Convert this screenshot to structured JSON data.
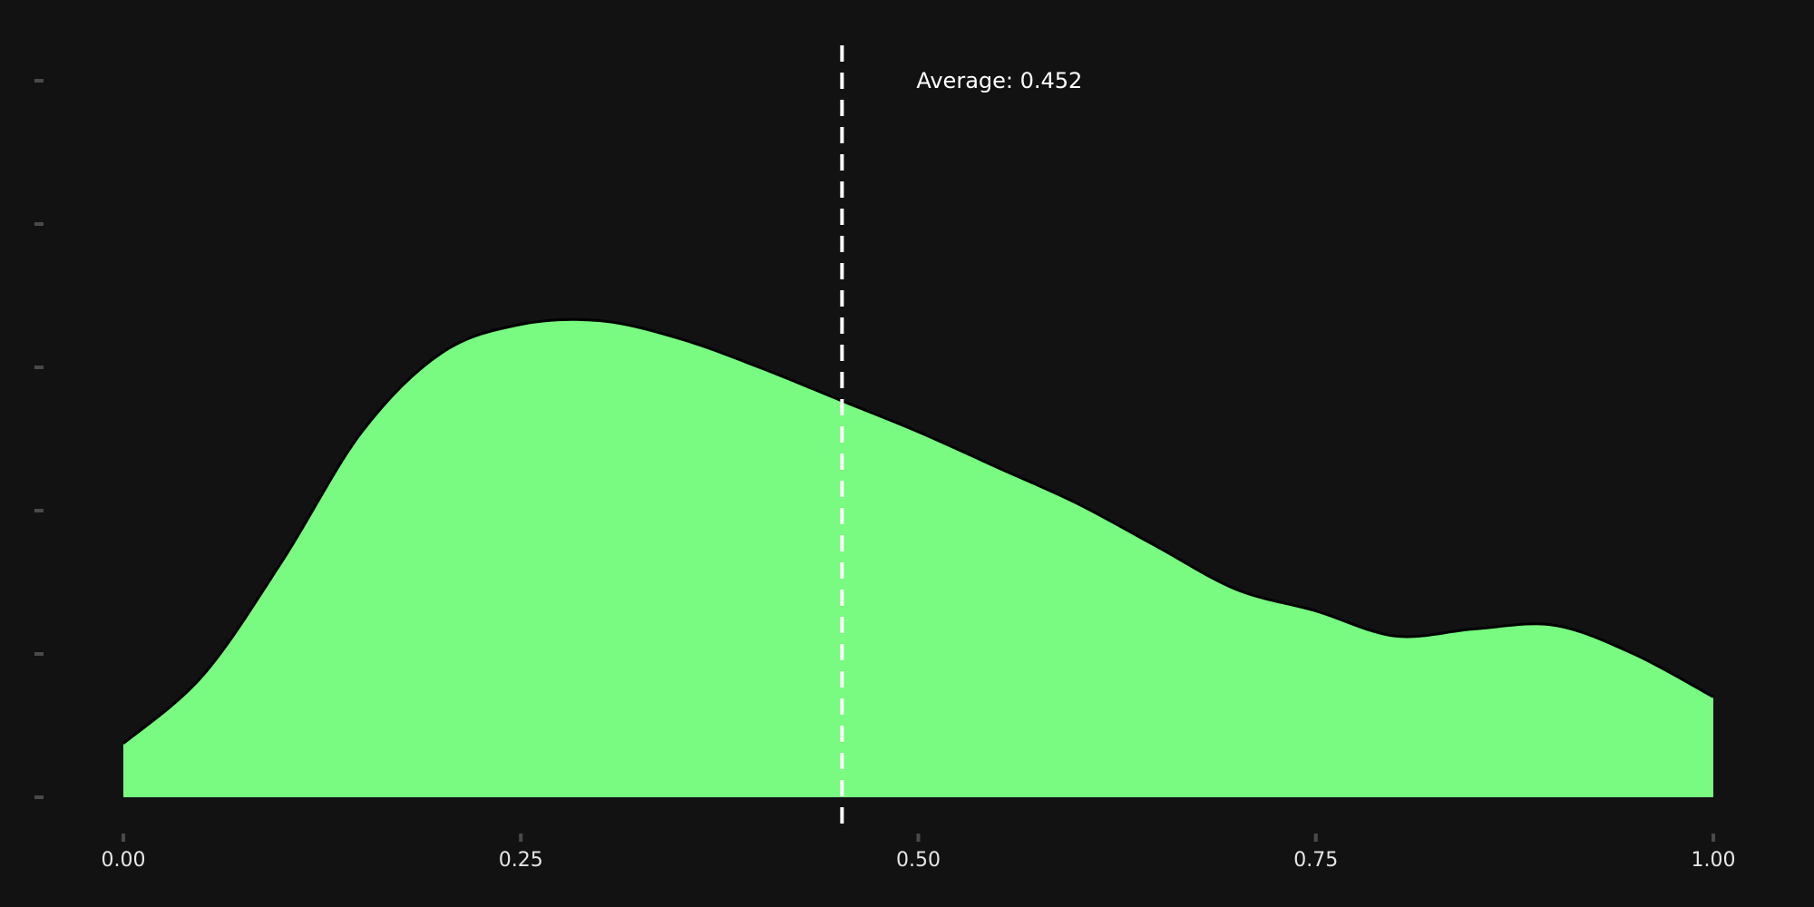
{
  "chart_data": {
    "type": "area",
    "title": "",
    "xlabel": "",
    "ylabel": "",
    "xlim": [
      0,
      1
    ],
    "ylim": [
      0,
      1
    ],
    "grid": false,
    "legend": "none",
    "x_ticks": [
      0,
      0.25,
      0.5,
      0.75,
      1
    ],
    "x_tick_labels": [
      "0.00",
      "0.25",
      "0.50",
      "0.75",
      "1.00"
    ],
    "y_ticks": [
      0,
      0.2,
      0.4,
      0.6,
      0.8,
      1.0
    ],
    "series": [
      {
        "color": "#78fb80",
        "x": [
          0,
          0.05,
          0.1,
          0.15,
          0.2,
          0.25,
          0.3,
          0.35,
          0.4,
          0.45,
          0.5,
          0.55,
          0.6,
          0.65,
          0.7,
          0.75,
          0.8,
          0.85,
          0.9,
          0.95,
          1.0
        ],
        "y": [
          0.075,
          0.17,
          0.33,
          0.51,
          0.62,
          0.66,
          0.665,
          0.64,
          0.6,
          0.555,
          0.51,
          0.46,
          0.41,
          0.35,
          0.29,
          0.26,
          0.225,
          0.235,
          0.24,
          0.2,
          0.14
        ]
      }
    ],
    "annotations": [
      {
        "type": "vline",
        "x": 0.452,
        "label": "Average: 0.452",
        "color": "#ffffff",
        "style": "dashed"
      }
    ]
  }
}
